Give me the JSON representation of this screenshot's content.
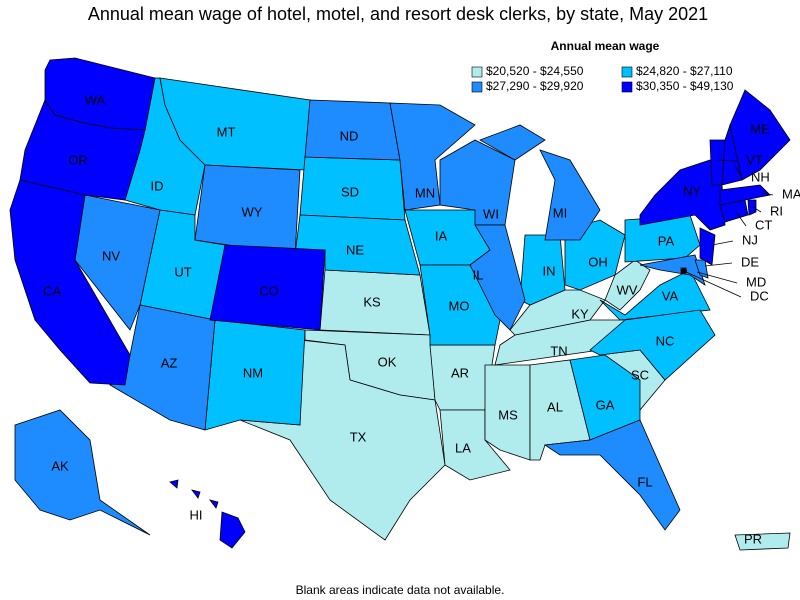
{
  "title": "Annual mean wage of hotel, motel, and resort desk clerks, by state, May 2021",
  "legend": {
    "title": "Annual mean wage",
    "items": [
      {
        "label": "$20,520 - $24,550",
        "color": "#b0ecee",
        "states": [
          "KS",
          "OK",
          "TX",
          "AR",
          "LA",
          "MS",
          "AL",
          "TN",
          "KY",
          "WV",
          "SC",
          "PR"
        ]
      },
      {
        "label": "$24,820 - $27,110",
        "color": "#00c0ff",
        "states": [
          "ID",
          "MT",
          "SD",
          "NE",
          "UT",
          "NM",
          "IA",
          "MO",
          "IN",
          "OH",
          "PA",
          "VA",
          "NC",
          "GA"
        ]
      },
      {
        "label": "$27,290 - $29,920",
        "color": "#1e8cff",
        "states": [
          "AK",
          "AZ",
          "NV",
          "WY",
          "ND",
          "MN",
          "WI",
          "MI",
          "IL",
          "FL",
          "MD",
          "DE",
          "DC"
        ]
      },
      {
        "label": "$30,350 - $49,130",
        "color": "#0000ff",
        "states": [
          "WA",
          "OR",
          "CA",
          "CO",
          "NY",
          "NJ",
          "CT",
          "RI",
          "MA",
          "VT",
          "NH",
          "ME",
          "HI"
        ]
      }
    ]
  },
  "note": "Blank areas indicate data not available."
}
